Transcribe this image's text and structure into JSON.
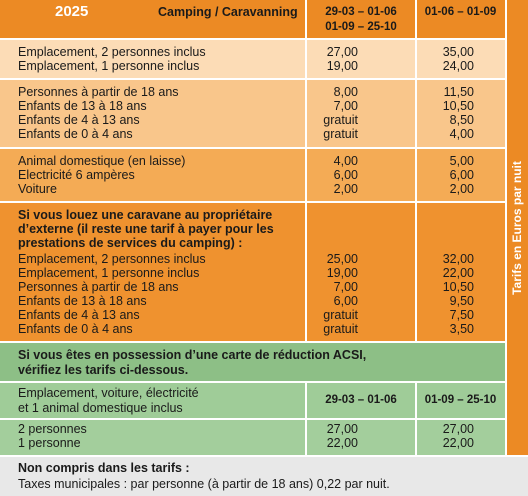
{
  "header": {
    "year": "2025",
    "title": "Camping / Caravanning",
    "period_1": [
      "29-03 – 01-06",
      "01-09 – 25-10"
    ],
    "period_2": "01-06 – 01-09"
  },
  "side_label": "Tarifs en Euros par nuit",
  "sections": [
    {
      "rows": [
        [
          "Emplacement, 2 personnes inclus",
          "27,00",
          "35,00"
        ],
        [
          "Emplacement, 1 personne inclus",
          "19,00",
          "24,00"
        ]
      ]
    },
    {
      "rows": [
        [
          "Personnes à partir de 18 ans",
          "8,00",
          "11,50"
        ],
        [
          "Enfants de 13 à 18 ans",
          "7,00",
          "10,50"
        ],
        [
          "Enfants de 4 à 13 ans",
          "gratuit",
          "8,50"
        ],
        [
          "Enfants de 0 à 4 ans",
          "gratuit",
          "4,00"
        ]
      ]
    },
    {
      "rows": [
        [
          "Animal domestique (en laisse)",
          "4,00",
          "5,00"
        ],
        [
          "Electricité 6 ampères",
          "6,00",
          "6,00"
        ],
        [
          "Voiture",
          "2,00",
          "2,00"
        ]
      ]
    },
    {
      "heading": [
        "Si vous louez une caravane au propriétaire",
        "d’externe (il reste une tarif à payer pour les",
        "prestations de services du camping) :"
      ],
      "rows": [
        [
          "Emplacement, 2 personnes inclus",
          "25,00",
          "32,00"
        ],
        [
          "Emplacement, 1 personne inclus",
          "19,00",
          "22,00"
        ],
        [
          "Personnes à partir de 18 ans",
          "7,00",
          "10,50"
        ],
        [
          "Enfants de 13 à 18 ans",
          "6,00",
          "9,50"
        ],
        [
          "Enfants de 4 à 13 ans",
          "gratuit",
          "7,50"
        ],
        [
          "Enfants de 0 à 4 ans",
          "gratuit",
          "3,50"
        ]
      ]
    }
  ],
  "acsi": {
    "heading": [
      "Si vous êtes en possession d’une carte de réduction ACSI,",
      "vérifiez les tarifs ci-dessous."
    ],
    "subheading": [
      "Emplacement, voiture, électricité",
      "et 1 animal domestique inclus"
    ],
    "periods": [
      "29-03 – 01-06",
      "01-09 – 25-10"
    ],
    "rows": [
      [
        "2 personnes",
        "27,00",
        "27,00"
      ],
      [
        "1 personne",
        "22,00",
        "22,00"
      ]
    ]
  },
  "footer": {
    "title": "Non compris dans les tarifs :",
    "text": "Taxes municipales : par personne (à partir de 18 ans) 0,22 par nuit."
  }
}
